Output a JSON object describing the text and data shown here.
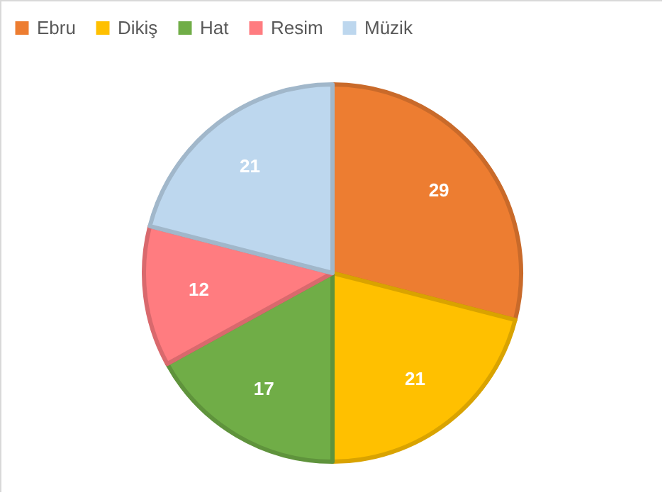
{
  "chart_data": {
    "type": "pie",
    "categories": [
      "Ebru",
      "Dikiş",
      "Hat",
      "Resim",
      "Müzik"
    ],
    "values": [
      29,
      21,
      17,
      12,
      21
    ],
    "colors": [
      "#ed7d31",
      "#ffc000",
      "#70ad47",
      "#ff7c80",
      "#bdd7ee"
    ],
    "data_labels": true,
    "legend": "top"
  }
}
